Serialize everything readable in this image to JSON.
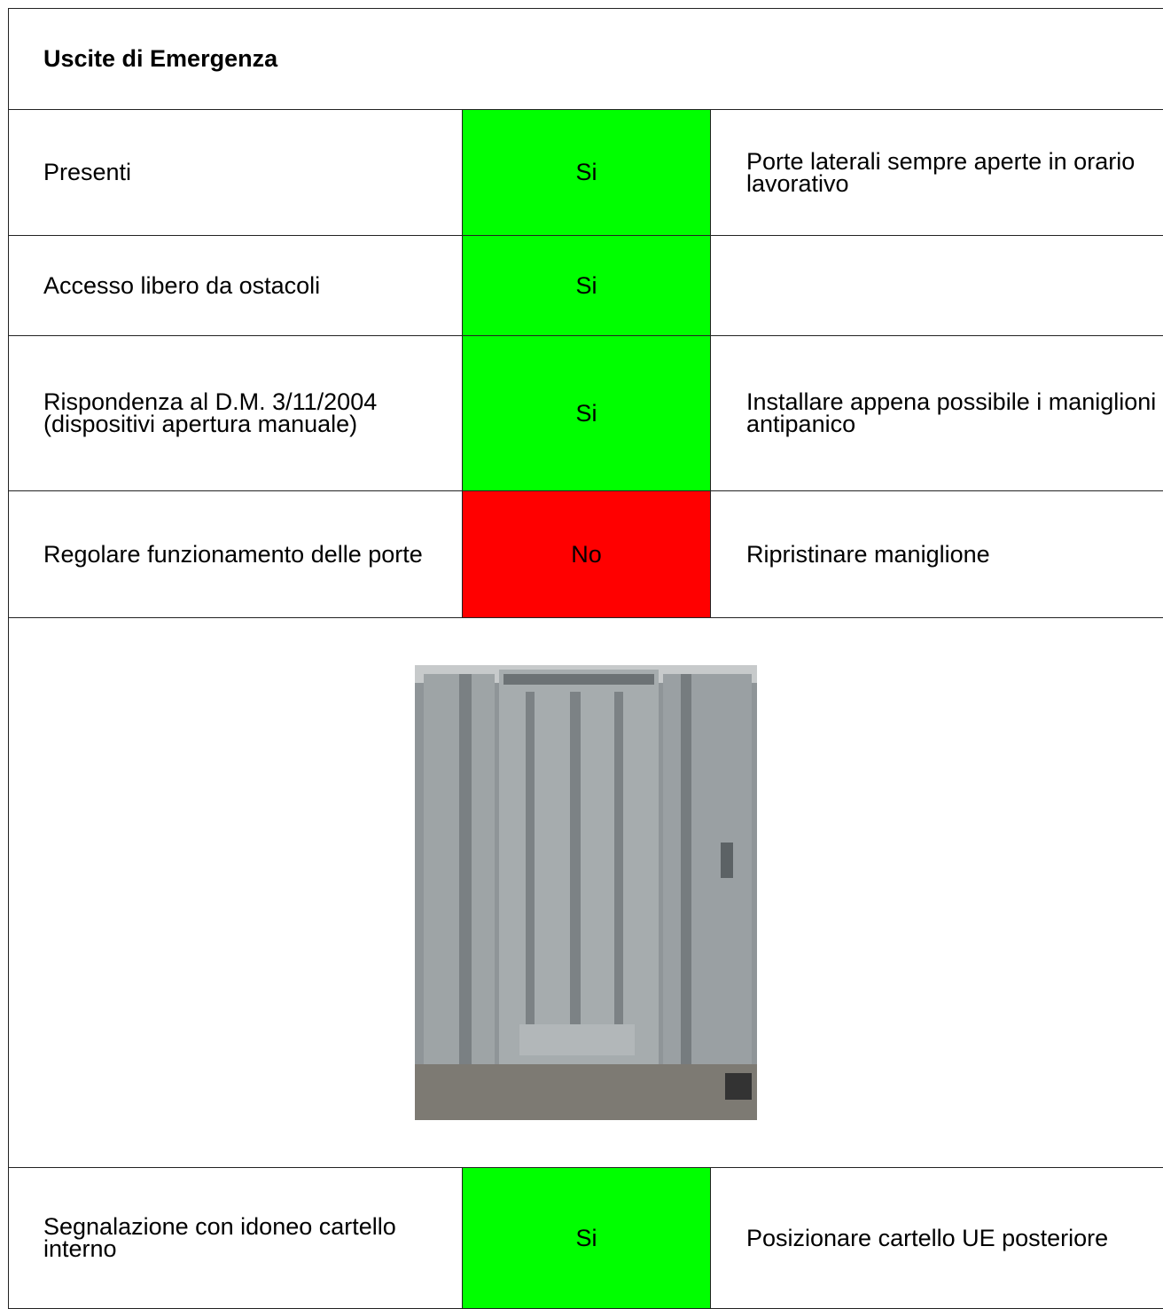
{
  "header": {
    "title": "Uscite di Emergenza"
  },
  "table": {
    "rows": [
      {
        "label": "Presenti",
        "status": "Si",
        "status_color": "#00ff00",
        "note": "Porte laterali sempre aperte in orario lavorativo"
      },
      {
        "label": "Accesso libero da ostacoli",
        "status": "Si",
        "status_color": "#00ff00"
      },
      {
        "label": "Rispondenza al D.M. 3/11/2004 (dispositivi apertura manuale)",
        "status": "Si",
        "status_color": "#00ff00",
        "note": "Installare appena possibile i maniglioni antipanico"
      },
      {
        "label": "Regolare funzionamento delle porte",
        "status": "No",
        "status_color": "#ff0000",
        "note": "Ripristinare maniglione"
      },
      {
        "label": "Segnalazione con idoneo cartello interno",
        "status": "Si",
        "status_color": "#00ff00",
        "note": "Posizionare cartello UE posteriore"
      }
    ]
  }
}
